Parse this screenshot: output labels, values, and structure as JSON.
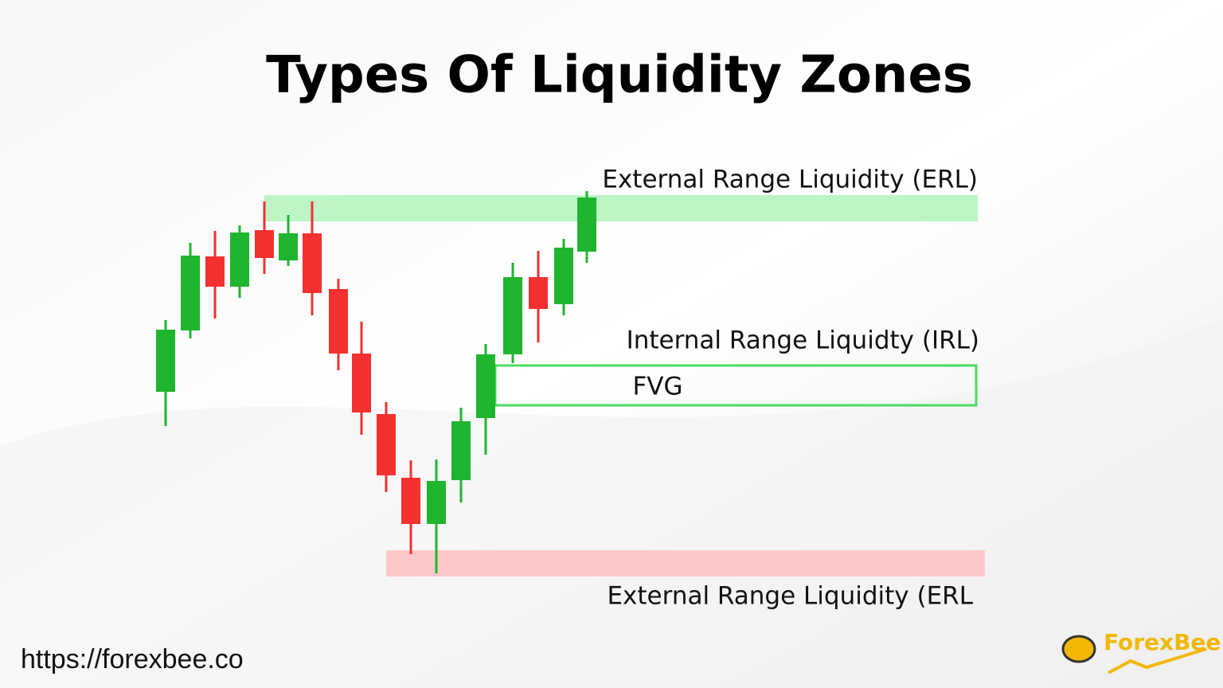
{
  "header": {
    "title": "Types Of Liquidity Zones"
  },
  "zones": {
    "erl_top": "External Range Liquidity (ERL)",
    "irl": "Internal Range Liquidty (IRL)",
    "fvg": "FVG",
    "erl_bottom": "External Range Liquidity (ERL"
  },
  "footer": {
    "url": "https://forexbee.co",
    "logo": "ForexBee"
  }
}
